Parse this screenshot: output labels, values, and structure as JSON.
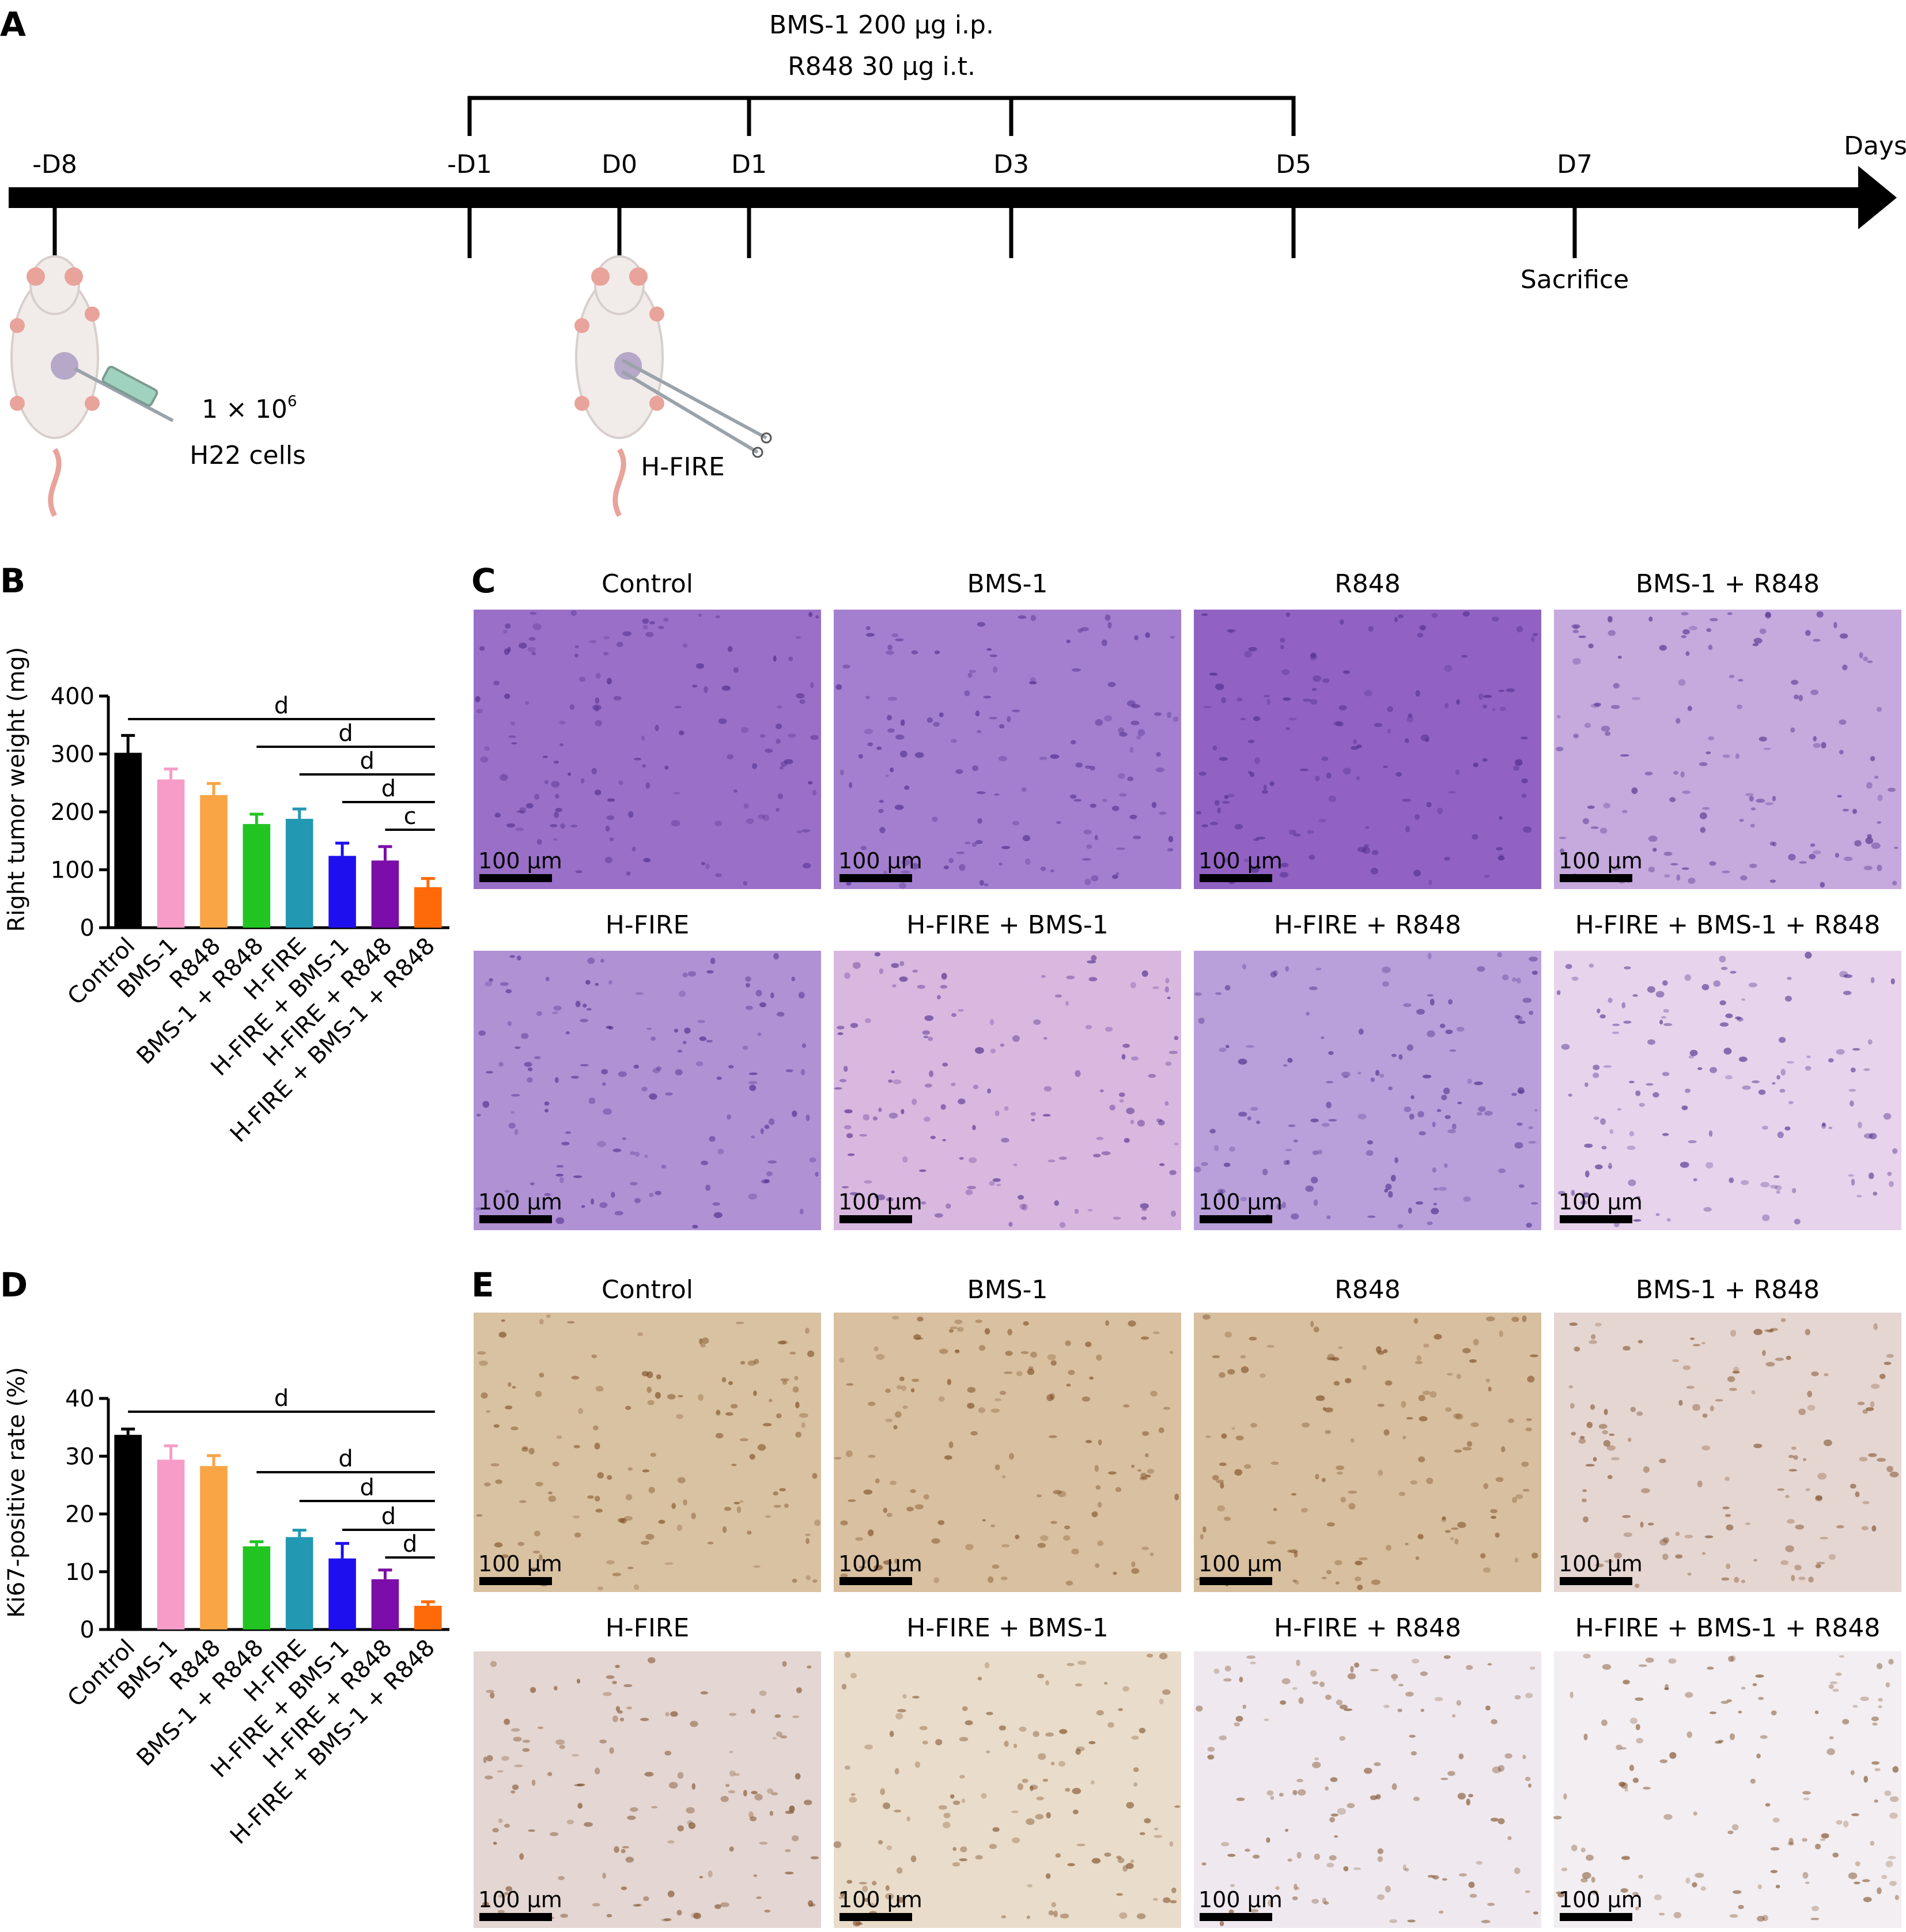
{
  "panel_letters": [
    "A",
    "B",
    "C",
    "D",
    "E"
  ],
  "timeline": {
    "treatment_line1": "BMS-1 200 μg i.p.",
    "treatment_line2": "R848 30 μg i.t.",
    "days_label": "Days",
    "day_labels": [
      "-D8",
      "-D1",
      "D0",
      "D1",
      "D3",
      "D5",
      "D7"
    ],
    "sacrifice_label": "Sacrifice",
    "cells_count_base": "1 × 10",
    "cells_count_exp": "6",
    "cells_label": "H22 cells",
    "hfire_label": "H-FIRE",
    "colors": {
      "mouse_body": "#f1ecea",
      "mouse_pink": "#e8a39a",
      "tumor": "#b5a8c8",
      "syringe": "#9fd3c0"
    }
  },
  "chart_data": [
    {
      "panel": "B",
      "type": "bar",
      "ylabel": "Right tumor weight (mg)",
      "ylim": [
        0,
        400
      ],
      "yticks": [
        "0",
        "100",
        "200",
        "300",
        "400"
      ],
      "categories": [
        "Control",
        "BMS-1",
        "R848",
        "BMS-1 + R848",
        "H-FIRE",
        "H-FIRE + BMS-1",
        "H-FIRE + R848",
        "H-FIRE + BMS-1 + R848"
      ],
      "values": [
        302,
        256,
        229,
        179,
        188,
        124,
        116,
        70
      ],
      "errors": [
        30,
        18,
        20,
        17,
        17,
        22,
        24,
        15
      ],
      "colors": [
        "#000000",
        "#f79cc8",
        "#f9a545",
        "#21c421",
        "#2398b3",
        "#1e10ee",
        "#7b0da8",
        "#ff6a08"
      ],
      "significance": [
        {
          "from": 0,
          "to": 7,
          "label": "d"
        },
        {
          "from": 3,
          "to": 7,
          "label": "d"
        },
        {
          "from": 4,
          "to": 7,
          "label": "d"
        },
        {
          "from": 5,
          "to": 7,
          "label": "d"
        },
        {
          "from": 6,
          "to": 7,
          "label": "c"
        }
      ]
    },
    {
      "panel": "D",
      "type": "bar",
      "ylabel": "Ki67-positive rate (%)",
      "ylim": [
        0,
        40
      ],
      "yticks": [
        "0",
        "10",
        "20",
        "30",
        "40"
      ],
      "categories": [
        "Control",
        "BMS-1",
        "R848",
        "BMS-1 + R848",
        "H-FIRE",
        "H-FIRE + BMS-1",
        "H-FIRE + R848",
        "H-FIRE + BMS-1 + R848"
      ],
      "values": [
        33.7,
        29.4,
        28.3,
        14.4,
        16,
        12.3,
        8.7,
        4.1
      ],
      "errors": [
        1.0,
        2.4,
        1.8,
        0.8,
        1.2,
        2.6,
        1.6,
        0.7
      ],
      "colors": [
        "#000000",
        "#f79cc8",
        "#f9a545",
        "#21c421",
        "#2398b3",
        "#1e10ee",
        "#7b0da8",
        "#ff6a08"
      ],
      "significance": [
        {
          "from": 0,
          "to": 7,
          "label": "d"
        },
        {
          "from": 3,
          "to": 7,
          "label": "d"
        },
        {
          "from": 4,
          "to": 7,
          "label": "d"
        },
        {
          "from": 5,
          "to": 7,
          "label": "d"
        },
        {
          "from": 6,
          "to": 7,
          "label": "d"
        }
      ]
    }
  ],
  "he_panel": {
    "titles": [
      "Control",
      "BMS-1",
      "R848",
      "BMS-1 + R848",
      "H-FIRE",
      "H-FIRE + BMS-1",
      "H-FIRE + R848",
      "H-FIRE + BMS-1 + R848"
    ],
    "scalebar_label": "100 μm",
    "bg_colors": [
      "#9a6fc7",
      "#a47fcf",
      "#9162c2",
      "#c6a9dd",
      "#b091d4",
      "#d9b8e0",
      "#b9a0da",
      "#e8d3ec"
    ],
    "dot_color": "#4b2a8a"
  },
  "ki67_panel": {
    "titles": [
      "Control",
      "BMS-1",
      "R848",
      "BMS-1 + R848",
      "H-FIRE",
      "H-FIRE + BMS-1",
      "H-FIRE + R848",
      "H-FIRE + BMS-1 + R848"
    ],
    "scalebar_label": "100 μm",
    "bg_colors": [
      "#d9c2a2",
      "#d8c0a0",
      "#d7bf9f",
      "#e5d6d2",
      "#e4d6d2",
      "#e9dccb",
      "#efe9ef",
      "#f2eef1"
    ],
    "dot_color": "#7b4a22"
  }
}
